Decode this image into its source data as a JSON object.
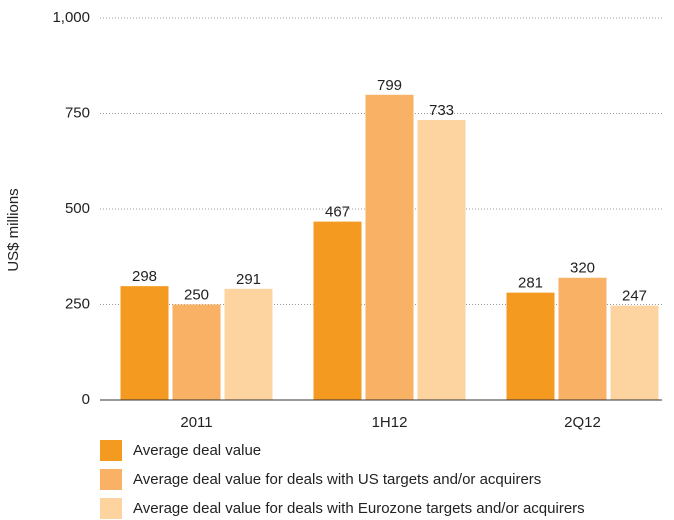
{
  "chart_data": {
    "type": "bar",
    "y_label": "US$ millions",
    "categories": [
      "2011",
      "1H12",
      "2Q12"
    ],
    "series": [
      {
        "name": "Average deal value",
        "color": "#f49a20",
        "values": [
          298,
          467,
          281
        ]
      },
      {
        "name": "Average deal value for deals with US targets and/or acquirers",
        "color": "#f9b265",
        "values": [
          250,
          799,
          320
        ]
      },
      {
        "name": "Average deal value for deals with Eurozone targets and/or acquirers",
        "color": "#fdd4a0",
        "values": [
          291,
          733,
          247
        ]
      }
    ],
    "ylim": [
      0,
      1000
    ],
    "yticks": [
      0,
      250,
      500,
      750,
      {
        "value": 1000,
        "label": "1,000"
      }
    ],
    "grid": true,
    "legend": "bottom"
  }
}
